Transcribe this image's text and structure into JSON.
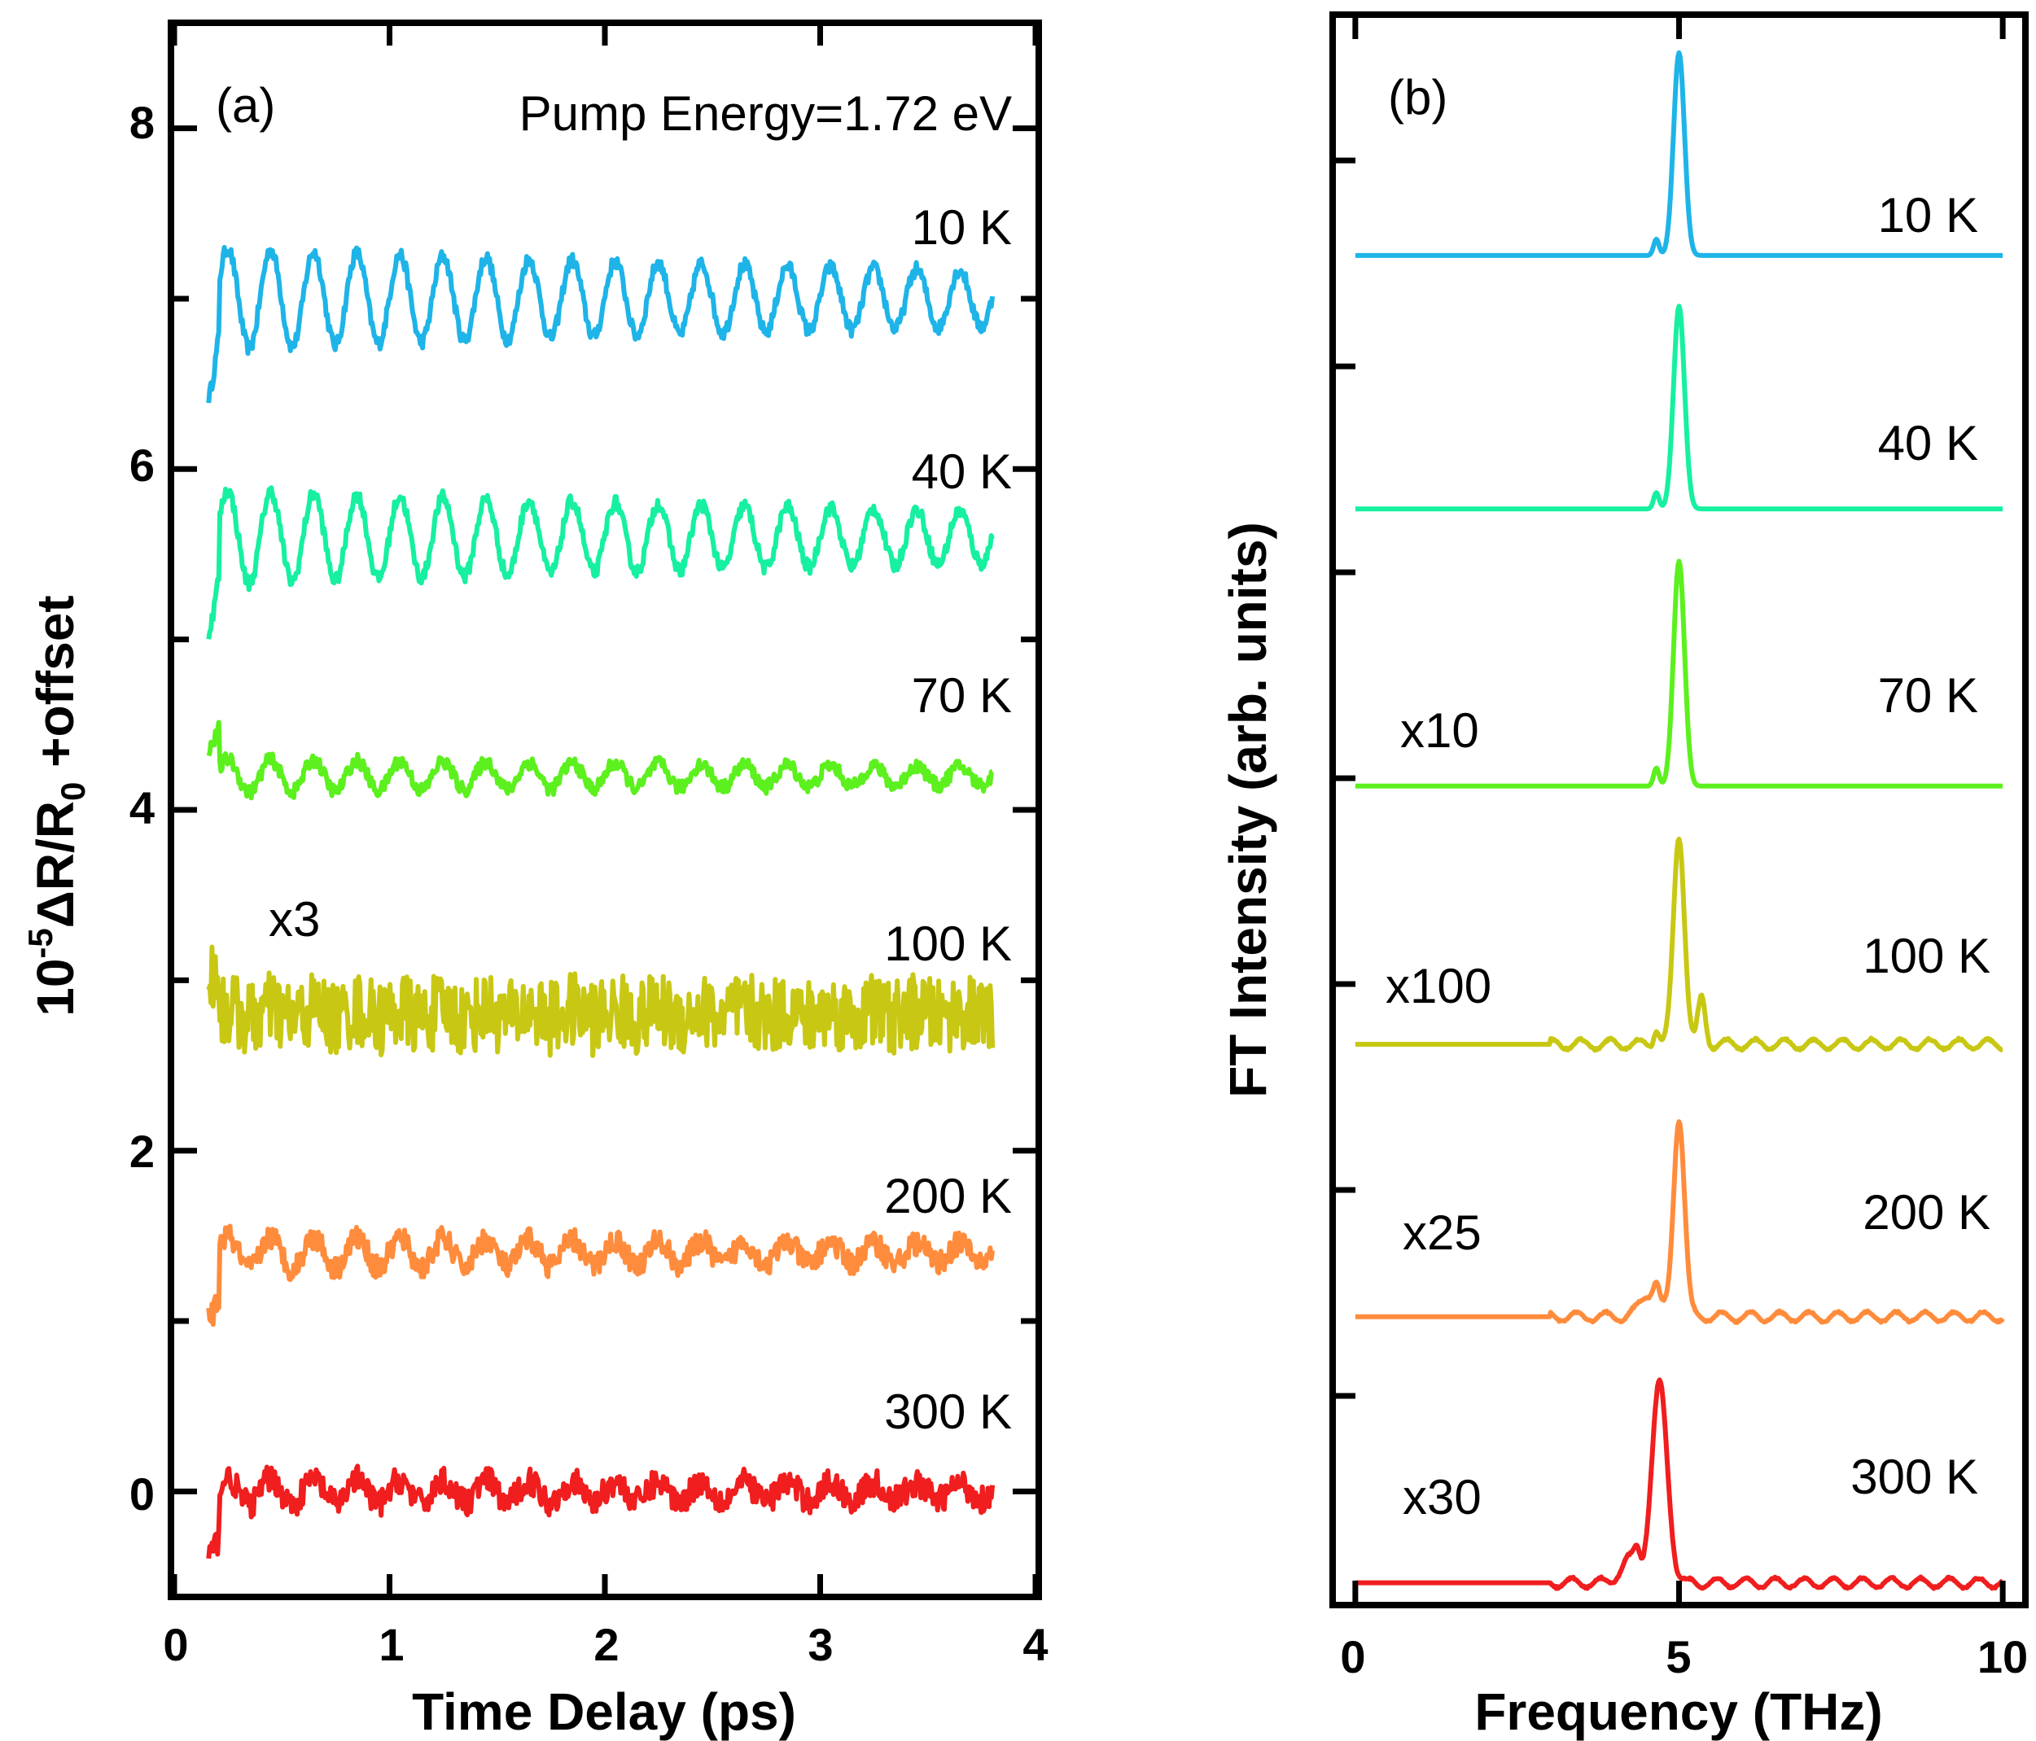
{
  "chart_data": [
    {
      "panel": "(a)",
      "type": "line",
      "title": "",
      "annotation": "Pump Energy=1.72 eV",
      "xlabel": "Time Delay (ps)",
      "ylabel_parts": {
        "base": "10",
        "exp": "-5",
        "mid": "ΔR/R",
        "sub": "0",
        "tail": " +offset"
      },
      "xlim": [
        0,
        4
      ],
      "ylim": [
        -0.6,
        8.6
      ],
      "xticks": [
        "0",
        "1",
        "2",
        "3",
        "4"
      ],
      "yticks": [
        "0",
        "2",
        "4",
        "6",
        "8"
      ],
      "scale_note": "x3",
      "series": [
        {
          "name": "10 K",
          "color": "#1EB4E8",
          "offset": 7.0,
          "osc_amp": 0.3,
          "noise": 0.04,
          "x_start": 0.16,
          "x_end": 3.8
        },
        {
          "name": "40 K",
          "color": "#16F0A0",
          "offset": 5.6,
          "osc_amp": 0.28,
          "noise": 0.04,
          "x_start": 0.16,
          "x_end": 3.8
        },
        {
          "name": "70 K",
          "color": "#5CF01E",
          "offset": 4.2,
          "osc_amp": 0.1,
          "noise": 0.04,
          "x_start": 0.16,
          "x_end": 3.8
        },
        {
          "name": "100 K",
          "color": "#C8C814",
          "offset": 2.8,
          "osc_amp": 0.03,
          "noise": 0.22,
          "x_start": 0.16,
          "x_end": 3.8
        },
        {
          "name": "200 K",
          "color": "#FF8C3C",
          "offset": 1.4,
          "osc_amp": 0.1,
          "noise": 0.07,
          "x_start": 0.16,
          "x_end": 3.8
        },
        {
          "name": "300 K",
          "color": "#F01E1E",
          "offset": 0.0,
          "osc_amp": 0.08,
          "noise": 0.08,
          "x_start": 0.16,
          "x_end": 3.8
        }
      ]
    },
    {
      "panel": "(b)",
      "type": "line",
      "title": "",
      "xlabel": "Frequency (THz)",
      "ylabel": "FT Intensity (arb. units)",
      "xlim": [
        -0.3,
        10.3
      ],
      "ylim": [
        0,
        1.0
      ],
      "xticks": [
        "0",
        "5",
        "10"
      ],
      "series": [
        {
          "name": "10 K",
          "scale": "",
          "color": "#1EB4E8",
          "baseline": 0.85,
          "peak_x": 5.0,
          "peak_h": 0.128
        },
        {
          "name": "40 K",
          "scale": "",
          "color": "#16F0A0",
          "baseline": 0.69,
          "peak_x": 5.0,
          "peak_h": 0.128
        },
        {
          "name": "70 K",
          "scale": "x10",
          "color": "#5CF01E",
          "baseline": 0.515,
          "peak_x": 5.0,
          "peak_h": 0.142
        },
        {
          "name": "100 K",
          "scale": "x100",
          "color": "#C8C814",
          "baseline": 0.352,
          "peak_x": 5.0,
          "peak_h": 0.132
        },
        {
          "name": "200 K",
          "scale": "x25",
          "color": "#FF8C3C",
          "baseline": 0.18,
          "peak_x": 5.0,
          "peak_h": 0.126
        },
        {
          "name": "300 K",
          "scale": "x30",
          "color": "#F01E1E",
          "baseline": 0.012,
          "peak_x": 4.7,
          "peak_h": 0.125
        }
      ]
    }
  ]
}
